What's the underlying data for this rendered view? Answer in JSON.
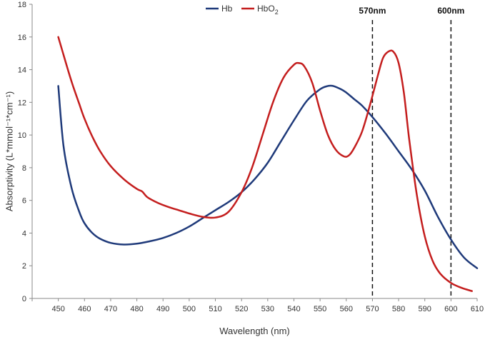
{
  "chart_data": {
    "type": "line",
    "title": "",
    "xlabel": "Wavelength (nm)",
    "ylabel": "Absorptivity (L*mmol⁻¹*cm⁻¹)",
    "xlim": [
      440,
      610
    ],
    "ylim": [
      0,
      18
    ],
    "xticks": [
      450,
      460,
      470,
      480,
      490,
      500,
      510,
      520,
      530,
      540,
      550,
      560,
      570,
      580,
      590,
      600,
      610
    ],
    "yticks": [
      0,
      2,
      4,
      6,
      8,
      10,
      12,
      14,
      16,
      18
    ],
    "grid": false,
    "legend": {
      "position": "top",
      "entries": [
        {
          "label": "Hb",
          "sub": ""
        },
        {
          "label": "HbO",
          "sub": "2"
        }
      ]
    },
    "reference_lines": [
      {
        "x": 570,
        "label": "570nm"
      },
      {
        "x": 600,
        "label": "600nm"
      }
    ],
    "series": [
      {
        "name": "Hb",
        "color": "#1f3a7a",
        "x": [
          450,
          452,
          455,
          458,
          460,
          463,
          466,
          470,
          475,
          480,
          485,
          490,
          495,
          500,
          505,
          510,
          515,
          520,
          525,
          530,
          535,
          540,
          545,
          550,
          553,
          555,
          558,
          560,
          563,
          566,
          570,
          575,
          580,
          585,
          590,
          595,
          600,
          605,
          610
        ],
        "y": [
          13.0,
          9.3,
          6.8,
          5.3,
          4.6,
          4.0,
          3.65,
          3.4,
          3.3,
          3.35,
          3.5,
          3.7,
          4.0,
          4.4,
          4.9,
          5.4,
          5.9,
          6.5,
          7.3,
          8.3,
          9.6,
          10.9,
          12.1,
          12.8,
          13.0,
          13.0,
          12.8,
          12.6,
          12.2,
          11.8,
          11.1,
          10.1,
          9.0,
          7.9,
          6.6,
          5.0,
          3.6,
          2.5,
          1.85
        ]
      },
      {
        "name": "HbO",
        "color": "#c41e1e",
        "x": [
          450,
          452,
          455,
          458,
          460,
          463,
          466,
          470,
          475,
          480,
          482,
          484,
          488,
          492,
          496,
          500,
          505,
          510,
          515,
          520,
          524,
          528,
          532,
          536,
          540,
          542,
          544,
          547,
          550,
          553,
          556,
          559,
          561,
          563,
          566,
          569,
          572,
          574,
          576,
          578,
          580,
          582,
          584,
          587,
          590,
          593,
          596,
          600,
          604,
          608
        ],
        "y": [
          16.0,
          14.9,
          13.3,
          11.9,
          11.0,
          9.9,
          9.0,
          8.1,
          7.3,
          6.7,
          6.55,
          6.2,
          5.85,
          5.6,
          5.4,
          5.2,
          5.0,
          4.95,
          5.3,
          6.5,
          8.0,
          10.0,
          12.0,
          13.5,
          14.3,
          14.4,
          14.2,
          13.2,
          11.5,
          10.0,
          9.1,
          8.7,
          8.75,
          9.2,
          10.2,
          11.8,
          13.6,
          14.7,
          15.1,
          15.1,
          14.4,
          12.6,
          9.8,
          6.3,
          3.8,
          2.3,
          1.5,
          0.95,
          0.65,
          0.45
        ]
      }
    ]
  }
}
